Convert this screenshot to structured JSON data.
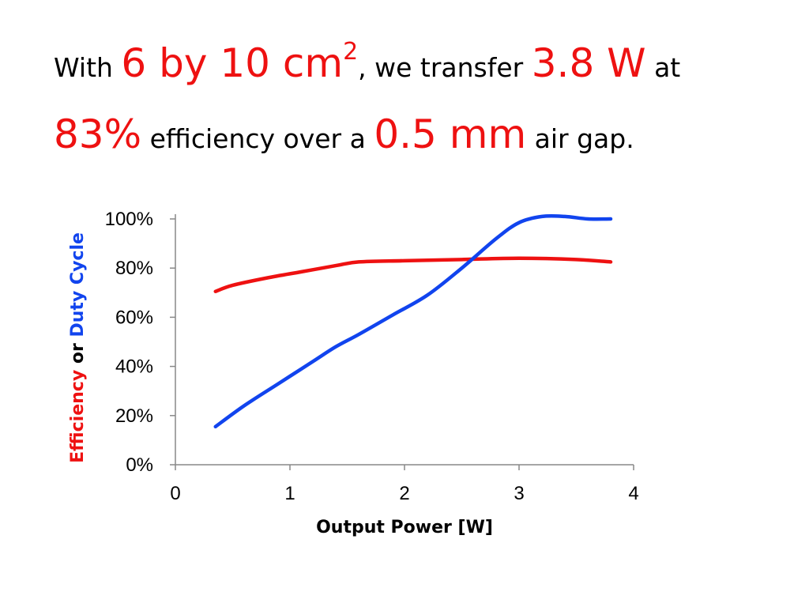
{
  "headline": {
    "t1": "With ",
    "e1": "6 by 10 cm",
    "e1_sup": "2",
    "t2": ", we transfer ",
    "e2": "3.8 W",
    "t3": " at",
    "e3": "83%",
    "t4": " efficiency over a ",
    "e4": "0.5 mm",
    "t5": " air gap."
  },
  "colors": {
    "emphasis": "#ee1111",
    "efficiency": "#ee1111",
    "duty_cycle": "#1144ee",
    "text": "#000000",
    "axis": "#888888"
  },
  "chart_data": {
    "type": "line",
    "xlabel": "Output Power [W]",
    "ylabel_parts": {
      "efficiency": "Efficiency",
      "or": " or ",
      "duty_cycle": "Duty Cycle"
    },
    "xlim": [
      0,
      4
    ],
    "ylim": [
      0,
      100
    ],
    "x_ticks": [
      "0",
      "1",
      "2",
      "3",
      "4"
    ],
    "y_ticks": [
      "0%",
      "20%",
      "40%",
      "60%",
      "80%",
      "100%"
    ],
    "grid": false,
    "legend": "none",
    "series": [
      {
        "key": "efficiency",
        "x": [
          0.35,
          0.5,
          0.8,
          1.1,
          1.4,
          1.6,
          2.0,
          2.5,
          3.0,
          3.5,
          3.8
        ],
        "y": [
          70.5,
          73,
          76,
          78.5,
          81,
          82.5,
          83,
          83.5,
          84,
          83.5,
          82.5
        ]
      },
      {
        "key": "duty_cycle",
        "x": [
          0.35,
          0.6,
          0.9,
          1.2,
          1.4,
          1.6,
          1.9,
          2.2,
          2.5,
          2.8,
          3.0,
          3.2,
          3.4,
          3.6,
          3.8
        ],
        "y": [
          15.5,
          24,
          33,
          42,
          48,
          53,
          61,
          69,
          80,
          92,
          98.5,
          101,
          101,
          100,
          100
        ]
      }
    ]
  }
}
